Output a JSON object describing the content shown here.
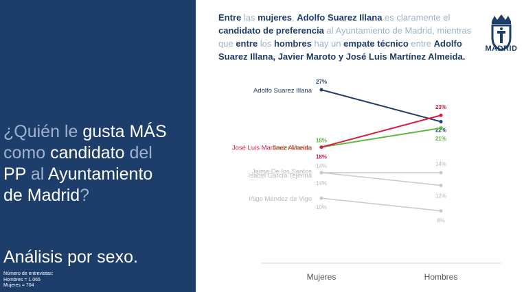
{
  "left": {
    "q1_dim": "¿Quién le ",
    "q1_hi": "gusta MÁS",
    "q2_dim": "como ",
    "q2_hi": "candidato",
    "q2_dim2": " del",
    "q3_hi": "PP",
    "q3_dim": " al ",
    "q3_hi2": "Ayuntamiento",
    "q4_hi": "de Madrid",
    "q4_dim": "?",
    "analysis": "Análisis por sexo.",
    "sample_title": "Número de entrevistas:",
    "sample_men": "Hombres = 1.065",
    "sample_women": "Mujeres = 704"
  },
  "headline": {
    "p1": "Entre",
    "p2": " las ",
    "p3": "mujeres",
    "p4": ", ",
    "p5": "Adolfo Suarez Illana",
    "p6": " es claramente el ",
    "p7": "candidato de preferencia",
    "p8": " al Ayuntamiento de Madrid, mientras que ",
    "p9": "entre",
    "p10": " los ",
    "p11": "hombres",
    "p12": " hay un ",
    "p13": "empate técnico",
    "p14": " entre ",
    "p15": "Adolfo Suarez Illana, Javier Maroto y José Luis Martínez Almeida."
  },
  "logo": {
    "text": "MADRID",
    "icon": "madrid-coat-of-arms-icon"
  },
  "colors": {
    "panel": "#1d3d6b",
    "suarez": "#1d3d6b",
    "martinez": "#e0163f",
    "maroto": "#5cb83c",
    "others": "#c9c9c9"
  },
  "chart_data": {
    "type": "line",
    "categories": [
      "Mujeres",
      "Hombres"
    ],
    "ylim": [
      0,
      30
    ],
    "series": [
      {
        "name": "Adolfo Suarez Illana",
        "values": [
          27,
          22
        ],
        "labels": [
          "27%",
          "22%"
        ],
        "color": "#1d3d6b"
      },
      {
        "name": "Javier Maroto",
        "values": [
          18,
          21
        ],
        "labels": [
          "18%",
          "21%"
        ],
        "color": "#5cb83c"
      },
      {
        "name": "José Luis Martínez Almeida",
        "values": [
          18,
          23
        ],
        "labels": [
          "18%",
          "23%"
        ],
        "color": "#e0163f"
      },
      {
        "name": "Jaime De los Santos",
        "values": [
          14,
          14
        ],
        "labels": [
          "14%",
          "14%"
        ],
        "color": "#c9c9c9"
      },
      {
        "name": "Isabel García Tejerina",
        "values": [
          14,
          12
        ],
        "labels": [
          "14%",
          "12%"
        ],
        "color": "#c9c9c9"
      },
      {
        "name": "Iñigo Méndez de Vigo",
        "values": [
          10,
          8
        ],
        "labels": [
          "10%",
          "8%"
        ],
        "color": "#c9c9c9"
      }
    ]
  }
}
